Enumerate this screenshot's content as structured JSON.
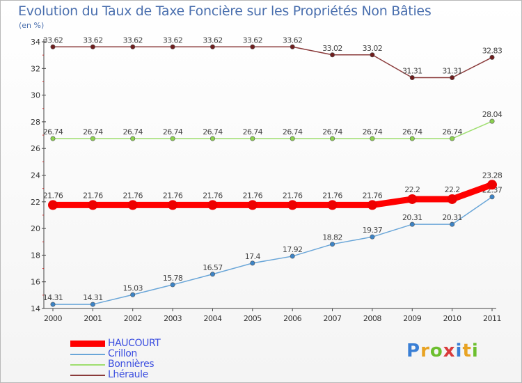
{
  "chart_data": {
    "type": "line",
    "title": "Evolution du Taux de Taxe Foncière sur les Propriétés Non Bâties",
    "ylabel": "(en %)",
    "xlabel": "",
    "x": [
      "2000",
      "2001",
      "2002",
      "2003",
      "2004",
      "2005",
      "2006",
      "2007",
      "2008",
      "2009",
      "2010",
      "2011"
    ],
    "ylim": [
      14,
      34
    ],
    "yticks": [
      "14",
      "16",
      "18",
      "20",
      "22",
      "24",
      "26",
      "28",
      "30",
      "32",
      "34"
    ],
    "series": [
      {
        "name": "Lhéraule",
        "color": "#8a3a3a",
        "point_color": "#6e1e1e",
        "values": [
          33.62,
          33.62,
          33.62,
          33.62,
          33.62,
          33.62,
          33.62,
          33.02,
          33.02,
          31.31,
          31.31,
          32.83
        ],
        "labels": [
          "33.62",
          "33.62",
          "33.62",
          "33.62",
          "33.62",
          "33.62",
          "33.62",
          "33.02",
          "33.02",
          "31.31",
          "31.31",
          "32.83"
        ]
      },
      {
        "name": "Bonnières",
        "color": "#9ede6e",
        "point_color": "#8bd14f",
        "values": [
          26.74,
          26.74,
          26.74,
          26.74,
          26.74,
          26.74,
          26.74,
          26.74,
          26.74,
          26.74,
          26.74,
          28.04
        ],
        "labels": [
          "26.74",
          "26.74",
          "26.74",
          "26.74",
          "26.74",
          "26.74",
          "26.74",
          "26.74",
          "26.74",
          "26.74",
          "26.74",
          "28.04"
        ]
      },
      {
        "name": "Crillon",
        "color": "#6aa6d8",
        "point_color": "#3d84c6",
        "values": [
          14.31,
          14.31,
          15.03,
          15.78,
          16.57,
          17.4,
          17.92,
          18.82,
          19.37,
          20.31,
          20.31,
          22.37
        ],
        "labels": [
          "14.31",
          "14.31",
          "15.03",
          "15.78",
          "16.57",
          "17.4",
          "17.92",
          "18.82",
          "19.37",
          "20.31",
          "20.31",
          "22.37"
        ]
      },
      {
        "name": "HAUCOURT",
        "color": "#ff0000",
        "point_color": "#ee0000",
        "values": [
          21.76,
          21.76,
          21.76,
          21.76,
          21.76,
          21.76,
          21.76,
          21.76,
          21.76,
          22.2,
          22.2,
          23.28
        ],
        "labels": [
          "21.76",
          "21.76",
          "21.76",
          "21.76",
          "21.76",
          "21.76",
          "21.76",
          "21.76",
          "21.76",
          "22.2",
          "22.2",
          "23.28"
        ]
      }
    ],
    "legend": [
      "HAUCOURT",
      "Crillon",
      "Bonnières",
      "Lhéraule"
    ],
    "legend_placement": "bottom-left",
    "grid": false
  },
  "logo": {
    "letters": [
      "P",
      "r",
      "o",
      "x",
      "i",
      "t",
      "i"
    ],
    "colors": [
      "#3a7fd5",
      "#e8a323",
      "#6cbf2e",
      "#d93b3b",
      "#3a7fd5",
      "#e8a323",
      "#6cbf2e"
    ]
  }
}
